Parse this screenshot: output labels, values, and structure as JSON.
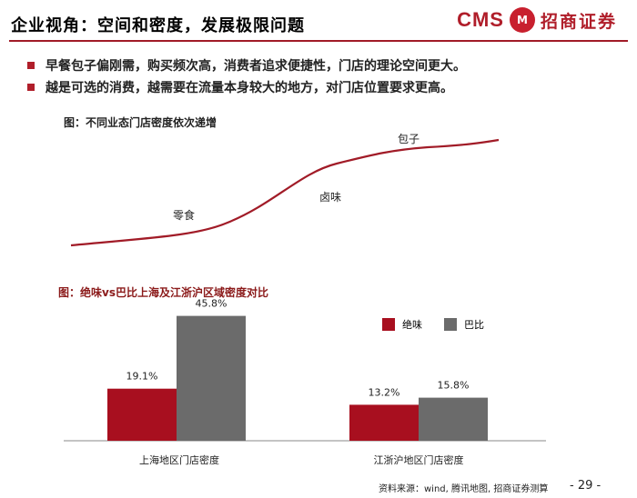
{
  "header": {
    "title": "企业视角：空间和密度，发展极限问题",
    "logo_mark": "CMS",
    "logo_badge": "M",
    "logo_name": "招商证券",
    "accent_color": "#b01e2a"
  },
  "bullets": [
    "早餐包子偏刚需，购买频次高，消费者追求便捷性，门店的理论空间更大。",
    "越是可选的消费，越需要在流量本身较大的地方，对门店位置要求更高。"
  ],
  "figure1": {
    "title": "图：不同业态门店密度依次递增",
    "labels": [
      "零食",
      "卤味",
      "包子"
    ],
    "curve_color": "#a11b27"
  },
  "chart_data": {
    "type": "bar",
    "title": "图：绝味vs巴比上海及江浙沪区域密度对比",
    "categories": [
      "上海地区门店密度",
      "江浙沪地区门店密度"
    ],
    "series": [
      {
        "name": "绝味",
        "values": [
          19.1,
          13.2
        ],
        "labels": [
          "19.1%",
          "13.2%"
        ],
        "color": "#a80f1f"
      },
      {
        "name": "巴比",
        "values": [
          45.8,
          15.8
        ],
        "labels": [
          "45.8%",
          "15.8%"
        ],
        "color": "#6b6b6b"
      }
    ],
    "ylim": [
      0,
      50
    ],
    "grid": false,
    "legend": "top-right"
  },
  "footer": {
    "source": "资料来源：wind, 腾讯地图, 招商证券测算",
    "page": "- 29 -"
  }
}
